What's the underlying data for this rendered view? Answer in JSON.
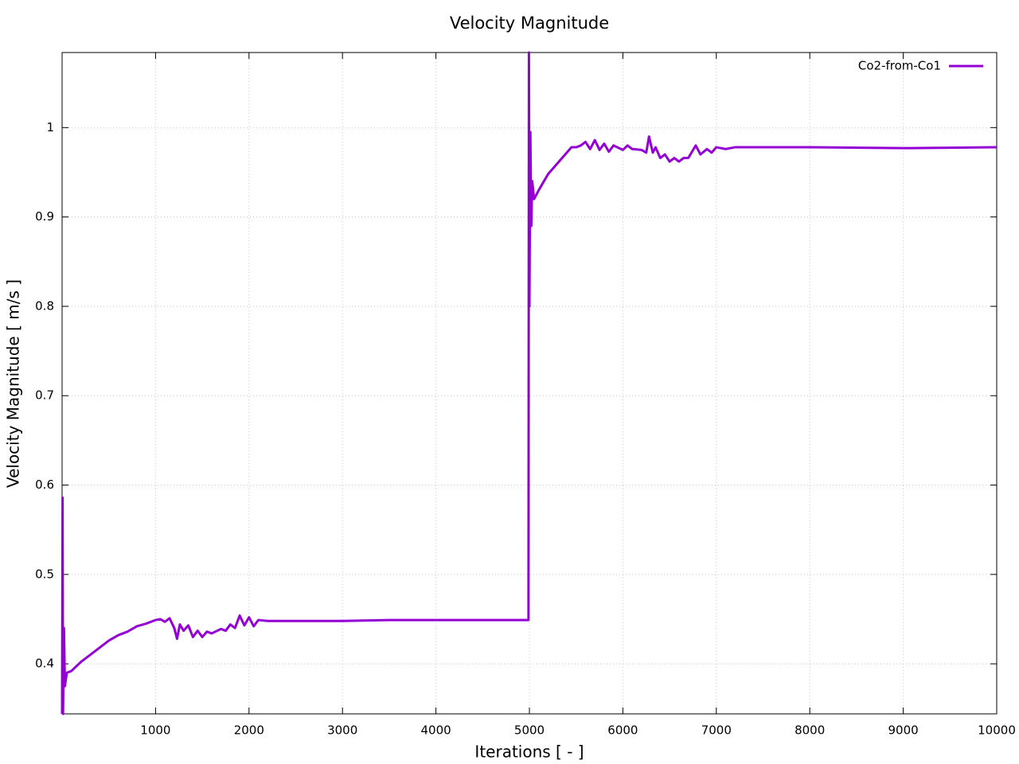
{
  "chart_data": {
    "type": "line",
    "title": "Velocity Magnitude",
    "xlabel": "Iterations [ - ]",
    "ylabel": "Velocity Magnitude [ m/s ]",
    "xlim": [
      0,
      10000
    ],
    "xticks": [
      1000,
      2000,
      3000,
      4000,
      5000,
      6000,
      7000,
      8000,
      9000,
      10000
    ],
    "ylim": [
      0.344,
      1.084
    ],
    "yticks": [
      0.4,
      0.5,
      0.6,
      0.7,
      0.8,
      0.9,
      1
    ],
    "grid": true,
    "legend": "upper right",
    "series": [
      {
        "name": "Co2-from-Co1",
        "color": "#9400d3",
        "x": [
          0,
          5,
          10,
          20,
          30,
          50,
          100,
          200,
          300,
          400,
          500,
          600,
          700,
          800,
          900,
          1000,
          1050,
          1100,
          1150,
          1200,
          1230,
          1260,
          1300,
          1350,
          1400,
          1450,
          1500,
          1550,
          1600,
          1700,
          1750,
          1800,
          1850,
          1900,
          1950,
          2000,
          2050,
          2100,
          2200,
          2500,
          3000,
          3500,
          4000,
          4500,
          4990,
          4995,
          5000,
          5010,
          5020,
          5030,
          5050,
          5100,
          5200,
          5300,
          5400,
          5450,
          5500,
          5550,
          5600,
          5650,
          5700,
          5750,
          5800,
          5850,
          5900,
          6000,
          6050,
          6100,
          6200,
          6250,
          6280,
          6320,
          6350,
          6400,
          6450,
          6500,
          6550,
          6600,
          6650,
          6700,
          6780,
          6830,
          6900,
          6950,
          7000,
          7100,
          7200,
          7500,
          8000,
          9000,
          10000
        ],
        "values": [
          0.344,
          0.586,
          0.344,
          0.44,
          0.375,
          0.39,
          0.392,
          0.402,
          0.41,
          0.418,
          0.426,
          0.432,
          0.436,
          0.442,
          0.445,
          0.449,
          0.45,
          0.447,
          0.451,
          0.44,
          0.428,
          0.444,
          0.437,
          0.443,
          0.43,
          0.437,
          0.43,
          0.436,
          0.434,
          0.439,
          0.437,
          0.444,
          0.44,
          0.454,
          0.443,
          0.452,
          0.442,
          0.449,
          0.448,
          0.448,
          0.448,
          0.449,
          0.449,
          0.449,
          0.449,
          1.084,
          0.8,
          0.995,
          0.89,
          0.94,
          0.92,
          0.93,
          0.948,
          0.96,
          0.972,
          0.978,
          0.978,
          0.98,
          0.984,
          0.976,
          0.986,
          0.975,
          0.982,
          0.973,
          0.98,
          0.975,
          0.98,
          0.976,
          0.975,
          0.972,
          0.99,
          0.972,
          0.978,
          0.966,
          0.97,
          0.962,
          0.966,
          0.962,
          0.966,
          0.966,
          0.98,
          0.97,
          0.976,
          0.972,
          0.978,
          0.976,
          0.978,
          0.978,
          0.978,
          0.977,
          0.978
        ]
      }
    ]
  }
}
